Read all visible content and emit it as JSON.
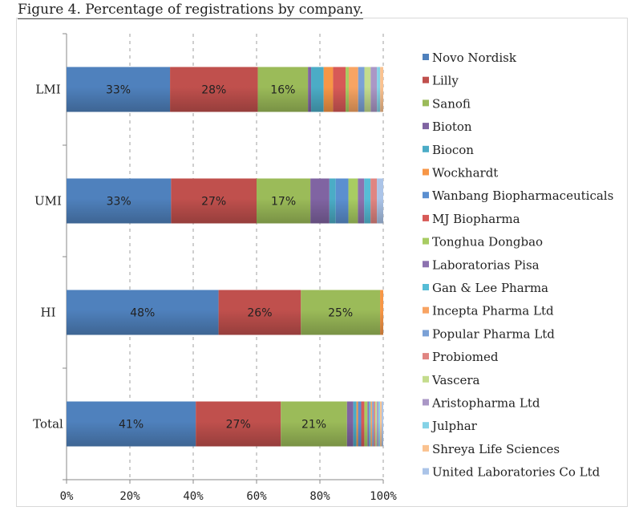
{
  "figure": {
    "title": "Figure 4. Percentage of registrations by company."
  },
  "chart_data": {
    "type": "bar",
    "orientation": "horizontal",
    "stacked": "percent",
    "categories": [
      "LMI",
      "UMI",
      "HI",
      "Total"
    ],
    "xlim": [
      0,
      100
    ],
    "xticks": [
      "0%",
      "20%",
      "40%",
      "60%",
      "80%",
      "100%"
    ],
    "legend_position": "right",
    "series": [
      {
        "name": "Novo Nordisk",
        "color": "#4f81bd",
        "values": [
          33,
          33,
          48,
          41
        ],
        "labels": [
          "33%",
          "33%",
          "48%",
          "41%"
        ]
      },
      {
        "name": "Lilly",
        "color": "#c0504d",
        "values": [
          28,
          27,
          26,
          27
        ],
        "labels": [
          "28%",
          "27%",
          "26%",
          "27%"
        ]
      },
      {
        "name": "Sanofi",
        "color": "#9bbb59",
        "values": [
          16,
          17,
          25,
          21
        ],
        "labels": [
          "16%",
          "17%",
          "25%",
          "21%"
        ]
      },
      {
        "name": "Bioton",
        "color": "#8064a2",
        "values": [
          1,
          6,
          0,
          2
        ]
      },
      {
        "name": "Biocon",
        "color": "#4bacc6",
        "values": [
          4,
          2,
          0,
          1
        ]
      },
      {
        "name": "Wockhardt",
        "color": "#f79646",
        "values": [
          3,
          0,
          1,
          0.5
        ]
      },
      {
        "name": "Wanbang Biopharmaceuticals",
        "color": "#5b8fd0",
        "values": [
          0,
          4,
          0,
          1
        ]
      },
      {
        "name": "MJ Biopharma",
        "color": "#d75a57",
        "values": [
          4,
          0,
          0,
          1
        ]
      },
      {
        "name": "Tonghua Dongbao",
        "color": "#a8cc62",
        "values": [
          1,
          3,
          0,
          1
        ]
      },
      {
        "name": "Laboratorias Pisa",
        "color": "#8d72b0",
        "values": [
          0,
          2,
          0,
          0.5
        ]
      },
      {
        "name": "Gan & Lee Pharma",
        "color": "#56bdd6",
        "values": [
          0,
          2,
          0,
          0.5
        ]
      },
      {
        "name": "Incepta Pharma Ltd",
        "color": "#f8a463",
        "values": [
          3,
          0,
          0,
          0.5
        ]
      },
      {
        "name": "Popular Pharma Ltd",
        "color": "#7ba1d6",
        "values": [
          2,
          0,
          0,
          0.5
        ]
      },
      {
        "name": "Probiomed",
        "color": "#e08582",
        "values": [
          0,
          2,
          0,
          0.5
        ]
      },
      {
        "name": "Vascera",
        "color": "#c4dc8d",
        "values": [
          2,
          0,
          0,
          0.5
        ]
      },
      {
        "name": "Aristopharma Ltd",
        "color": "#aa97c6",
        "values": [
          2,
          0,
          0,
          0.5
        ]
      },
      {
        "name": "Julphar",
        "color": "#84d2e6",
        "values": [
          1,
          0,
          0,
          0.5
        ]
      },
      {
        "name": "Shreya Life Sciences",
        "color": "#fac290",
        "values": [
          1,
          0,
          0,
          0.5
        ]
      },
      {
        "name": "United Laboratories Co Ltd",
        "color": "#abc4e8",
        "values": [
          0,
          2,
          0,
          0.5
        ]
      }
    ]
  }
}
